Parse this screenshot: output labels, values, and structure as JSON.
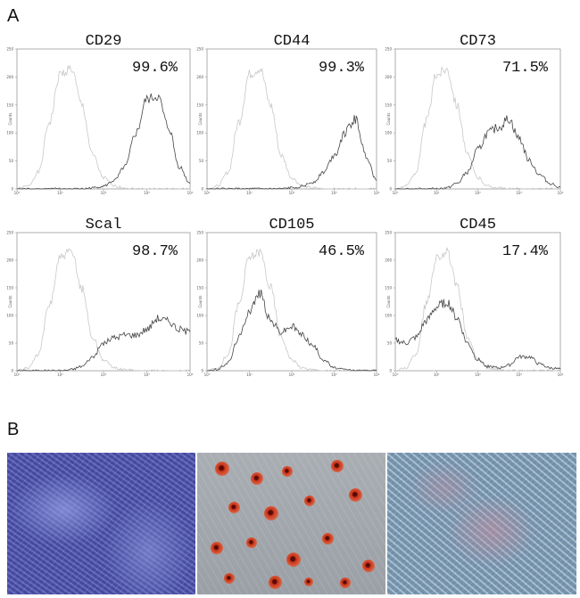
{
  "figure": {
    "panel_a_label": "A",
    "panel_b_label": "B"
  },
  "chart_data": [
    {
      "type": "line",
      "title": "CD29",
      "annotation": "99.6%",
      "ylabel": "Counts",
      "xscale": "log",
      "xlim": [
        1,
        10000
      ],
      "ylim": [
        0,
        250
      ],
      "x_ticks": [
        "10^0",
        "10^1",
        "10^2",
        "10^3",
        "10^4"
      ],
      "y_ticks": [
        0,
        50,
        100,
        150,
        200,
        250
      ],
      "x_log10": [
        0,
        0.25,
        0.5,
        0.75,
        1,
        1.25,
        1.5,
        1.75,
        2,
        2.25,
        2.5,
        2.75,
        3,
        3.25,
        3.5,
        3.75,
        4
      ],
      "series": [
        {
          "color": "#c8c8c8",
          "values": [
            0,
            5,
            30,
            120,
            205,
            215,
            150,
            60,
            20,
            5,
            2,
            0,
            0,
            0,
            0,
            0,
            0
          ]
        },
        {
          "color": "#444444",
          "values": [
            0,
            0,
            0,
            0,
            0,
            0,
            0,
            2,
            5,
            15,
            40,
            100,
            160,
            165,
            110,
            40,
            10
          ]
        }
      ]
    },
    {
      "type": "line",
      "title": "CD44",
      "annotation": "99.3%",
      "ylabel": "Counts",
      "xscale": "log",
      "xlim": [
        1,
        10000
      ],
      "ylim": [
        0,
        250
      ],
      "x_ticks": [
        "10^0",
        "10^1",
        "10^2",
        "10^3",
        "10^4"
      ],
      "y_ticks": [
        0,
        50,
        100,
        150,
        200,
        250
      ],
      "x_log10": [
        0,
        0.25,
        0.5,
        0.75,
        1,
        1.25,
        1.5,
        1.75,
        2,
        2.25,
        2.5,
        2.75,
        3,
        3.25,
        3.5,
        3.75,
        4
      ],
      "series": [
        {
          "color": "#c8c8c8",
          "values": [
            0,
            5,
            30,
            120,
            205,
            215,
            150,
            60,
            20,
            5,
            2,
            0,
            0,
            0,
            0,
            0,
            0
          ]
        },
        {
          "color": "#444444",
          "values": [
            0,
            0,
            0,
            0,
            0,
            0,
            0,
            0,
            2,
            5,
            12,
            30,
            60,
            100,
            125,
            60,
            15
          ]
        }
      ]
    },
    {
      "type": "line",
      "title": "CD73",
      "annotation": "71.5%",
      "ylabel": "Counts",
      "xscale": "log",
      "xlim": [
        1,
        10000
      ],
      "ylim": [
        0,
        250
      ],
      "x_ticks": [
        "10^0",
        "10^1",
        "10^2",
        "10^3",
        "10^4"
      ],
      "y_ticks": [
        0,
        50,
        100,
        150,
        200,
        250
      ],
      "x_log10": [
        0,
        0.25,
        0.5,
        0.75,
        1,
        1.25,
        1.5,
        1.75,
        2,
        2.25,
        2.5,
        2.75,
        3,
        3.25,
        3.5,
        3.75,
        4
      ],
      "series": [
        {
          "color": "#c8c8c8",
          "values": [
            0,
            5,
            30,
            120,
            205,
            215,
            150,
            60,
            20,
            5,
            2,
            0,
            0,
            0,
            0,
            0,
            0
          ]
        },
        {
          "color": "#444444",
          "values": [
            0,
            0,
            0,
            0,
            0,
            2,
            10,
            30,
            70,
            100,
            110,
            125,
            90,
            50,
            25,
            10,
            3
          ]
        }
      ]
    },
    {
      "type": "line",
      "title": "Scal",
      "annotation": "98.7%",
      "ylabel": "Counts",
      "xscale": "log",
      "xlim": [
        1,
        10000
      ],
      "ylim": [
        0,
        250
      ],
      "x_ticks": [
        "10^0",
        "10^1",
        "10^2",
        "10^3",
        "10^4"
      ],
      "y_ticks": [
        0,
        50,
        100,
        150,
        200,
        250
      ],
      "x_log10": [
        0,
        0.25,
        0.5,
        0.75,
        1,
        1.25,
        1.5,
        1.75,
        2,
        2.25,
        2.5,
        2.75,
        3,
        3.25,
        3.5,
        3.75,
        4
      ],
      "series": [
        {
          "color": "#c8c8c8",
          "values": [
            0,
            5,
            30,
            120,
            205,
            215,
            150,
            60,
            20,
            5,
            2,
            0,
            0,
            0,
            0,
            0,
            0
          ]
        },
        {
          "color": "#444444",
          "values": [
            0,
            0,
            0,
            0,
            0,
            2,
            8,
            25,
            50,
            60,
            65,
            65,
            75,
            95,
            90,
            75,
            70
          ]
        }
      ]
    },
    {
      "type": "line",
      "title": "CD105",
      "annotation": "46.5%",
      "ylabel": "Counts",
      "xscale": "log",
      "xlim": [
        1,
        10000
      ],
      "ylim": [
        0,
        250
      ],
      "x_ticks": [
        "10^0",
        "10^1",
        "10^2",
        "10^3",
        "10^4"
      ],
      "y_ticks": [
        0,
        50,
        100,
        150,
        200,
        250
      ],
      "x_log10": [
        0,
        0.25,
        0.5,
        0.75,
        1,
        1.25,
        1.5,
        1.75,
        2,
        2.25,
        2.5,
        2.75,
        3,
        3.25,
        3.5,
        3.75,
        4
      ],
      "series": [
        {
          "color": "#c8c8c8",
          "values": [
            0,
            5,
            30,
            120,
            205,
            215,
            150,
            60,
            20,
            5,
            2,
            0,
            0,
            0,
            0,
            0,
            0
          ]
        },
        {
          "color": "#444444",
          "values": [
            0,
            2,
            15,
            60,
            110,
            140,
            90,
            70,
            80,
            65,
            45,
            20,
            5,
            2,
            0,
            0,
            0
          ]
        }
      ]
    },
    {
      "type": "line",
      "title": "CD45",
      "annotation": "17.4%",
      "ylabel": "Counts",
      "xscale": "log",
      "xlim": [
        1,
        10000
      ],
      "ylim": [
        0,
        250
      ],
      "x_ticks": [
        "10^0",
        "10^1",
        "10^2",
        "10^3",
        "10^4"
      ],
      "y_ticks": [
        0,
        50,
        100,
        150,
        200,
        250
      ],
      "x_log10": [
        0,
        0.25,
        0.5,
        0.75,
        1,
        1.25,
        1.5,
        1.75,
        2,
        2.25,
        2.5,
        2.75,
        3,
        3.25,
        3.5,
        3.75,
        4
      ],
      "series": [
        {
          "color": "#c8c8c8",
          "values": [
            0,
            5,
            30,
            120,
            205,
            215,
            150,
            60,
            20,
            5,
            2,
            0,
            0,
            0,
            0,
            0,
            0
          ]
        },
        {
          "color": "#444444",
          "values": [
            55,
            50,
            60,
            90,
            115,
            125,
            95,
            50,
            20,
            8,
            5,
            10,
            25,
            25,
            12,
            5,
            3
          ]
        }
      ]
    }
  ]
}
